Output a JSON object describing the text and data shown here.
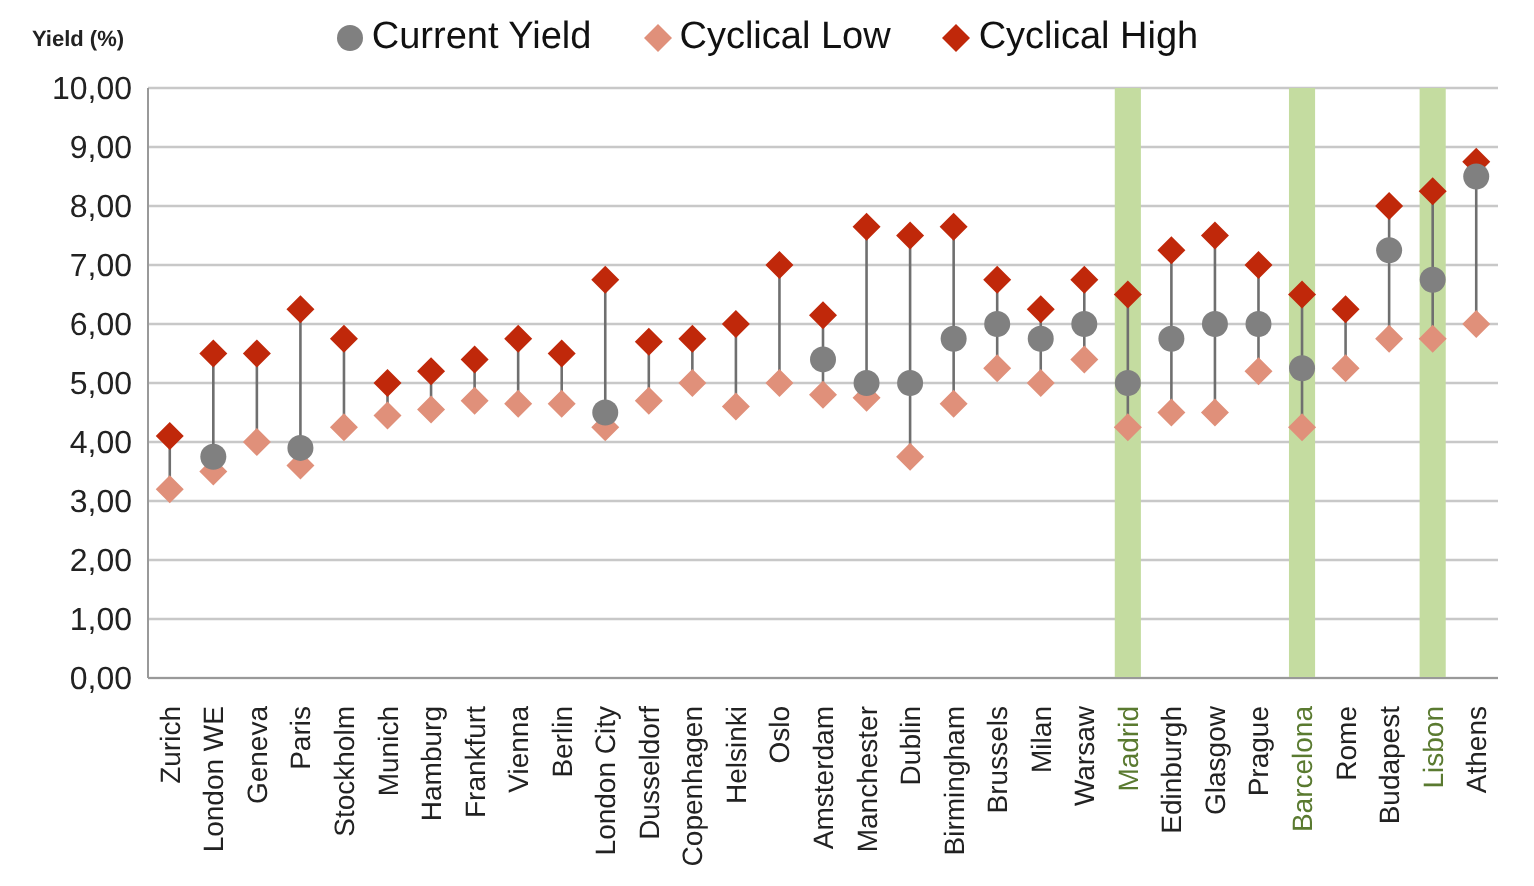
{
  "chart_data": {
    "type": "scatter",
    "ylabel": "Yield (%)",
    "categories": [
      "Zurich",
      "London WE",
      "Geneva",
      "Paris",
      "Stockholm",
      "Munich",
      "Hamburg",
      "Frankfurt",
      "Vienna",
      "Berlin",
      "London City",
      "Dusseldorf",
      "Copenhagen",
      "Helsinki",
      "Oslo",
      "Amsterdam",
      "Manchester",
      "Dublin",
      "Birmingham",
      "Brussels",
      "Milan",
      "Warsaw",
      "Madrid",
      "Edinburgh",
      "Glasgow",
      "Prague",
      "Barcelona",
      "Rome",
      "Budapest",
      "Lisbon",
      "Athens"
    ],
    "series": [
      {
        "name": "Current Yield",
        "color": "#808080",
        "marker": "circle",
        "values": [
          null,
          3.75,
          null,
          3.9,
          null,
          null,
          null,
          null,
          null,
          null,
          4.5,
          null,
          null,
          null,
          null,
          5.4,
          5.0,
          5.0,
          5.75,
          6.0,
          5.75,
          6.0,
          5.0,
          5.75,
          6.0,
          6.0,
          5.25,
          null,
          7.25,
          6.75,
          8.5
        ]
      },
      {
        "name": "Cyclical Low",
        "color": "#e0907a",
        "marker": "diamond",
        "values": [
          3.2,
          3.5,
          4.0,
          3.6,
          4.25,
          4.45,
          4.55,
          4.7,
          4.65,
          4.65,
          4.25,
          4.7,
          5.0,
          4.6,
          5.0,
          4.8,
          4.75,
          3.75,
          4.65,
          5.25,
          5.0,
          5.4,
          4.25,
          4.5,
          4.5,
          5.2,
          4.25,
          5.25,
          5.75,
          5.75,
          6.0
        ]
      },
      {
        "name": "Cyclical High",
        "color": "#c0280a",
        "marker": "diamond",
        "values": [
          4.1,
          5.5,
          5.5,
          6.25,
          5.75,
          5.0,
          5.2,
          5.4,
          5.75,
          5.5,
          6.75,
          5.7,
          5.75,
          6.0,
          7.0,
          6.15,
          7.65,
          7.5,
          7.65,
          6.75,
          6.25,
          6.75,
          6.5,
          7.25,
          7.5,
          7.0,
          6.5,
          6.25,
          8.0,
          8.25,
          8.75
        ]
      }
    ],
    "ylim": [
      0,
      10
    ],
    "yticks": [
      {
        "value": 0,
        "label": "0,00"
      },
      {
        "value": 1,
        "label": "1,00"
      },
      {
        "value": 2,
        "label": "2,00"
      },
      {
        "value": 3,
        "label": "3,00"
      },
      {
        "value": 4,
        "label": "4,00"
      },
      {
        "value": 5,
        "label": "5,00"
      },
      {
        "value": 6,
        "label": "6,00"
      },
      {
        "value": 7,
        "label": "7,00"
      },
      {
        "value": 8,
        "label": "8,00"
      },
      {
        "value": 9,
        "label": "9,00"
      },
      {
        "value": 10,
        "label": "10,00"
      }
    ],
    "grid": "y",
    "legend": "top",
    "bands": [
      {
        "axis": "x",
        "from": "Madrid",
        "to": "Madrid",
        "color": "#c4dca0"
      },
      {
        "axis": "x",
        "from": "Barcelona",
        "to": "Barcelona",
        "color": "#c4dca0"
      },
      {
        "axis": "x",
        "from": "Lisbon",
        "to": "Lisbon",
        "color": "#c4dca0"
      }
    ]
  }
}
